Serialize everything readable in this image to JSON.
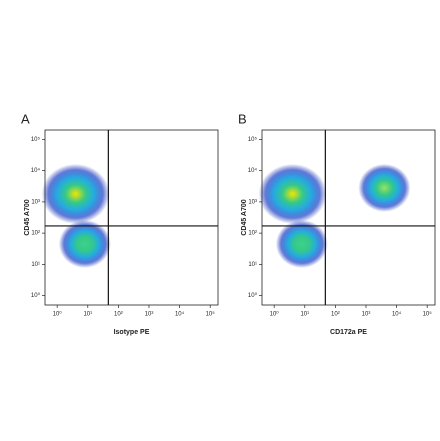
{
  "chart_data": [
    {
      "type": "density",
      "title": "A",
      "xlabel": "Isotype PE",
      "ylabel": "CD45 A700",
      "xscale": "log",
      "yscale": "log",
      "xlim": [
        0.4,
        180000
      ],
      "ylim": [
        0.5,
        200000
      ],
      "xticks": [
        {
          "value": 1,
          "label": "10⁰"
        },
        {
          "value": 10,
          "label": "10¹"
        },
        {
          "value": 100,
          "label": "10²"
        },
        {
          "value": 1000,
          "label": "10³"
        },
        {
          "value": 10000,
          "label": "10⁴"
        },
        {
          "value": 100000,
          "label": "10⁵"
        }
      ],
      "yticks": [
        {
          "value": 1,
          "label": "10⁰"
        },
        {
          "value": 10,
          "label": "10¹"
        },
        {
          "value": 100,
          "label": "10²"
        },
        {
          "value": 1000,
          "label": "10³"
        },
        {
          "value": 10000,
          "label": "10⁴"
        },
        {
          "value": 100000,
          "label": "10⁵"
        }
      ],
      "gate": {
        "x": 47,
        "y": 170
      },
      "populations": [
        {
          "x": 4,
          "y": 1800,
          "color": "#f2e600"
        },
        {
          "x": 8,
          "y": 45,
          "color": "#3fd08a"
        }
      ]
    },
    {
      "type": "density",
      "title": "B",
      "xlabel": "CD172a PE",
      "ylabel": "CD45 A700",
      "xscale": "log",
      "yscale": "log",
      "xlim": [
        0.4,
        180000
      ],
      "ylim": [
        0.5,
        200000
      ],
      "xticks": [
        {
          "value": 1,
          "label": "10⁰"
        },
        {
          "value": 10,
          "label": "10¹"
        },
        {
          "value": 100,
          "label": "10²"
        },
        {
          "value": 1000,
          "label": "10³"
        },
        {
          "value": 10000,
          "label": "10⁴"
        },
        {
          "value": 100000,
          "label": "10⁵"
        }
      ],
      "yticks": [
        {
          "value": 1,
          "label": "10⁰"
        },
        {
          "value": 10,
          "label": "10¹"
        },
        {
          "value": 100,
          "label": "10²"
        },
        {
          "value": 1000,
          "label": "10³"
        },
        {
          "value": 10000,
          "label": "10⁴"
        },
        {
          "value": 100000,
          "label": "10⁵"
        }
      ],
      "gate": {
        "x": 47,
        "y": 170
      },
      "populations": [
        {
          "x": 4,
          "y": 1800,
          "color": "#f2e600"
        },
        {
          "x": 8,
          "y": 45,
          "color": "#3fd08a"
        },
        {
          "x": 4000,
          "y": 2800,
          "color": "#9be25a"
        }
      ]
    }
  ]
}
